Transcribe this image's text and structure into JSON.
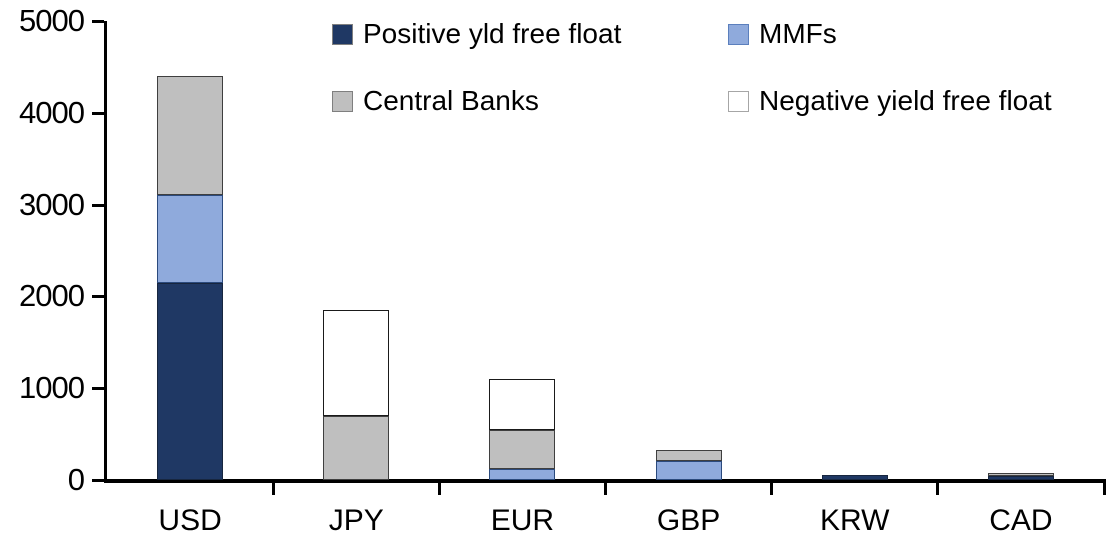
{
  "chart_data": {
    "type": "bar",
    "stacked": true,
    "title": "",
    "xlabel": "",
    "ylabel": "",
    "categories": [
      "USD",
      "JPY",
      "EUR",
      "GBP",
      "KRW",
      "CAD"
    ],
    "series": [
      {
        "name": "Positive yld free float",
        "color": "#1F3864",
        "bar_border": "#17263F",
        "legend_border": "#808080",
        "values": [
          2150,
          0,
          0,
          0,
          50,
          45
        ]
      },
      {
        "name": "MMFs",
        "color": "#8FAADC",
        "bar_border": "#2B4A7D",
        "legend_border": "#5B7FBD",
        "values": [
          950,
          0,
          120,
          210,
          0,
          0
        ]
      },
      {
        "name": "Central Banks",
        "color": "#BFBFBF",
        "bar_border": "#3F3F3F",
        "legend_border": "#7F7F7F",
        "values": [
          1300,
          700,
          420,
          120,
          0,
          35
        ]
      },
      {
        "name": "Negative yield free float",
        "color": "#FFFFFF",
        "bar_border": "#1A1A1A",
        "legend_border": "#A6A6A6",
        "values": [
          0,
          1150,
          560,
          0,
          0,
          0
        ]
      }
    ],
    "ylim": [
      0,
      5000
    ],
    "yticks": [
      0,
      1000,
      2000,
      3000,
      4000,
      5000
    ],
    "ytick_labels": [
      "0",
      "1000",
      "2000",
      "3000",
      "4000",
      "5000"
    ],
    "grid": false,
    "legend_position": "top",
    "legend_columns": 2,
    "axis_color": "#000000",
    "text_color": "#000000",
    "background": "#FFFFFF"
  }
}
